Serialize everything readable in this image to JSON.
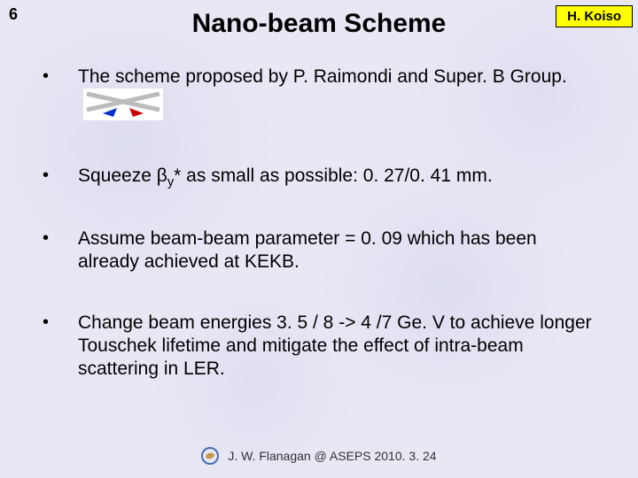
{
  "page_number": "6",
  "title": "Nano-beam Scheme",
  "author_badge": "H. Koiso",
  "bullets": [
    {
      "text_html": "The scheme proposed by P. Raimondi and Super. B Group.",
      "has_diagram": true
    },
    {
      "text_html": "Squeeze β<sub>y</sub>* as small as possible: 0. 27/0. 41 mm.",
      "has_diagram": false
    },
    {
      "text_html": "Assume beam-beam parameter = 0. 09 which has been already achieved at KEKB.",
      "has_diagram": false
    },
    {
      "text_html": "Change beam energies 3. 5 / 8 -> 4 /7 Ge. V to achieve longer Touschek lifetime and mitigate the effect of intra-beam scattering in LER.",
      "has_diagram": false
    }
  ],
  "footer": "J. W. Flanagan @ ASEPS 2010. 3. 24",
  "colors": {
    "badge_bg": "#ffff00",
    "arrow_blue": "#0033cc",
    "arrow_red": "#cc0000",
    "beam_gray": "#bcbcbc",
    "footer_icon_ring": "#4a6db0",
    "footer_icon_inner": "#c7984a"
  },
  "diagram": {
    "width": 90,
    "height": 36
  }
}
